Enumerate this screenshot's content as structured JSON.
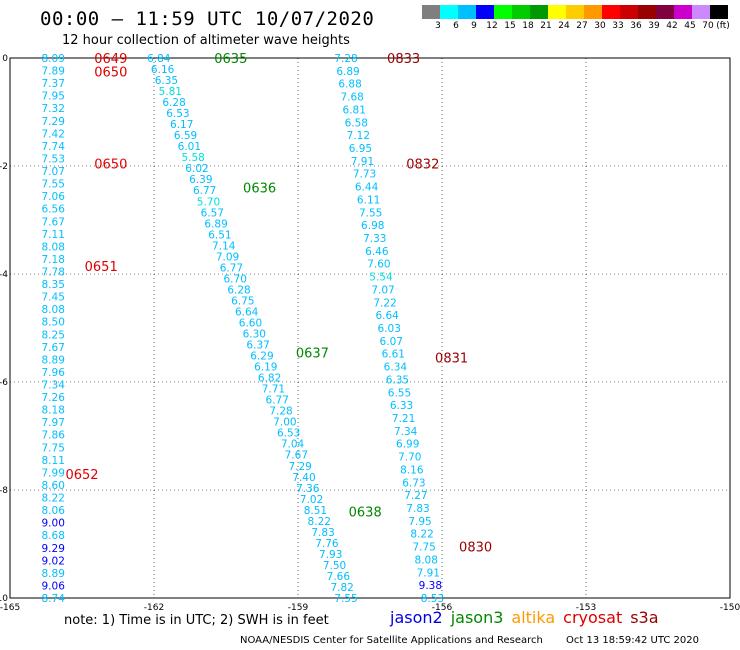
{
  "header": {
    "title": "00:00 – 11:59 UTC 10/07/2020",
    "subtitle": "12 hour collection of altimeter wave heights"
  },
  "colorbar": {
    "colors": [
      "#7f7f7f",
      "#00ffff",
      "#00bfff",
      "#0000ff",
      "#00ff00",
      "#00cc00",
      "#009900",
      "#ffff00",
      "#ffcc00",
      "#ff9900",
      "#ff0000",
      "#cc0000",
      "#990000",
      "#800040",
      "#cc00cc",
      "#cc88ff",
      "#000000"
    ],
    "labels": [
      "3",
      "6",
      "9",
      "12",
      "15",
      "18",
      "21",
      "24",
      "27",
      "30",
      "33",
      "36",
      "39",
      "42",
      "45",
      "70",
      "(ft)"
    ]
  },
  "axes": {
    "x_ticks": [
      "-165",
      "-162",
      "-159",
      "-156",
      "-153",
      "-150"
    ],
    "y_ticks": [
      "0",
      "-2",
      "-4",
      "-6",
      "-8",
      "-10"
    ],
    "x_range": [
      -165,
      -150
    ],
    "y_range": [
      -10,
      0
    ]
  },
  "tracks": [
    {
      "name": "cryosat",
      "color": "#dd0000",
      "lon_start": -164.1,
      "lon_end": -164.1,
      "lat_start": 0.0,
      "lat_end": -10.0,
      "waves": [
        "8.09",
        "7.89",
        "7.37",
        "7.95",
        "7.32",
        "7.29",
        "7.42",
        "7.74",
        "7.53",
        "7.07",
        "7.55",
        "7.06",
        "6.56",
        "7.67",
        "7.11",
        "8.08",
        "7.18",
        "7.78",
        "8.35",
        "7.45",
        "8.08",
        "8.50",
        "8.25",
        "7.67",
        "8.89",
        "7.96",
        "7.34",
        "7.26",
        "8.18",
        "7.97",
        "7.86",
        "7.75",
        "8.11",
        "7.99",
        "8.60",
        "8.22",
        "8.06",
        "9.00",
        "8.68",
        "9.29",
        "9.02",
        "8.89",
        "9.06",
        "8.74"
      ],
      "times": [
        {
          "label": "0649",
          "lon": -162.9,
          "lat": 0.0
        },
        {
          "label": "0650",
          "lon": -162.9,
          "lat": -0.25
        },
        {
          "label": "0650",
          "lon": -162.9,
          "lat": -1.95
        },
        {
          "label": "0651",
          "lon": -163.1,
          "lat": -3.85
        },
        {
          "label": "0652",
          "lon": -163.5,
          "lat": -7.7
        }
      ]
    },
    {
      "name": "jason3",
      "color": "#008800",
      "lon_start": -161.9,
      "lon_end": -158.0,
      "lat_start": 0.0,
      "lat_end": -10.0,
      "waves": [
        "6.84",
        "6.16",
        "6.35",
        "5.81",
        "6.28",
        "6.53",
        "6.17",
        "6.59",
        "6.01",
        "5.58",
        "6.02",
        "6.39",
        "6.77",
        "5.70",
        "6.57",
        "6.89",
        "6.51",
        "7.14",
        "7.09",
        "6.77",
        "6.70",
        "6.28",
        "6.75",
        "6.64",
        "6.60",
        "6.30",
        "6.37",
        "6.29",
        "6.19",
        "6.82",
        "7.71",
        "6.77",
        "7.28",
        "7.00",
        "6.53",
        "7.04",
        "7.67",
        "7.29",
        "7.40",
        "7.36",
        "7.02",
        "8.51",
        "8.22",
        "7.83",
        "7.76",
        "7.93",
        "7.50",
        "7.66",
        "7.82",
        "7.55"
      ],
      "times": [
        {
          "label": "0635",
          "lon": -160.4,
          "lat": 0.0
        },
        {
          "label": "0636",
          "lon": -159.8,
          "lat": -2.4
        },
        {
          "label": "0637",
          "lon": -158.7,
          "lat": -5.45
        },
        {
          "label": "0638",
          "lon": -157.6,
          "lat": -8.4
        }
      ]
    },
    {
      "name": "s3a",
      "color": "#990000",
      "lon_start": -158.0,
      "lon_end": -156.2,
      "lat_start": 0.0,
      "lat_end": -10.0,
      "waves": [
        "7.28",
        "6.89",
        "6.88",
        "7.68",
        "6.81",
        "6.58",
        "7.12",
        "6.95",
        "7.91",
        "7.73",
        "6.44",
        "6.11",
        "7.55",
        "6.98",
        "7.33",
        "6.46",
        "7.60",
        "5.54",
        "7.07",
        "7.22",
        "6.64",
        "6.03",
        "6.07",
        "6.61",
        "6.34",
        "6.35",
        "6.55",
        "6.33",
        "7.21",
        "7.34",
        "6.99",
        "7.70",
        "8.16",
        "6.73",
        "7.27",
        "7.83",
        "7.95",
        "8.22",
        "7.75",
        "8.08",
        "7.91",
        "9.38",
        "8.53"
      ],
      "times": [
        {
          "label": "0833",
          "lon": -156.8,
          "lat": 0.0
        },
        {
          "label": "0832",
          "lon": -156.4,
          "lat": -1.95
        },
        {
          "label": "0831",
          "lon": -155.8,
          "lat": -5.55
        },
        {
          "label": "0830",
          "lon": -155.3,
          "lat": -9.05
        }
      ]
    }
  ],
  "note": "note:  1) Time is in UTC;  2) SWH is in feet",
  "legend": [
    {
      "label": "jason2",
      "color": "#0000dd"
    },
    {
      "label": "jason3",
      "color": "#008800"
    },
    {
      "label": "altika",
      "color": "#ff9900"
    },
    {
      "label": "cryosat",
      "color": "#dd0000"
    },
    {
      "label": "s3a",
      "color": "#990000"
    }
  ],
  "footer": {
    "center": "NOAA/NESDIS Center for Satellite Applications and Research",
    "timestamp": "Oct 13 18:59:42 UTC 2020"
  }
}
